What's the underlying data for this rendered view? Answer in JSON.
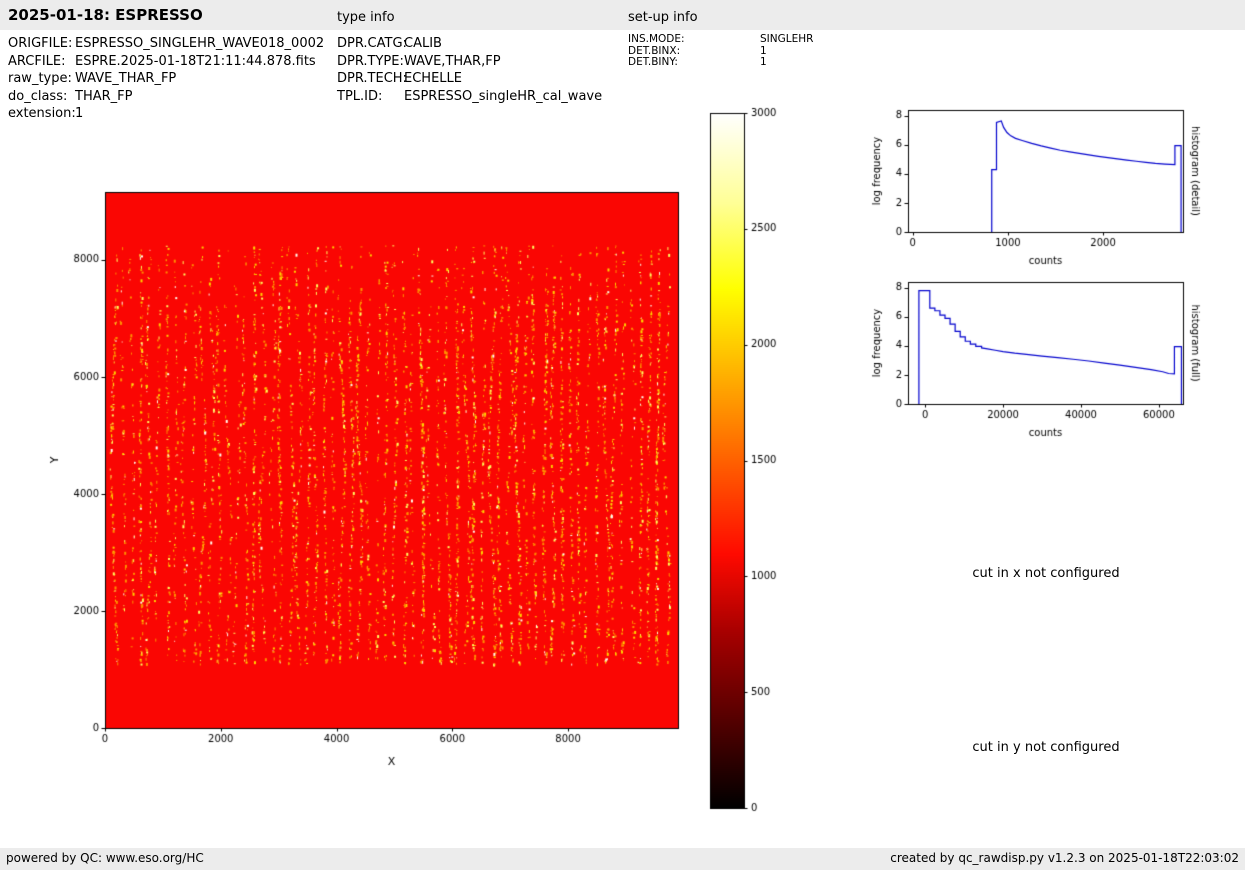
{
  "header": {
    "title": "2025-01-18: ESPRESSO",
    "type_info_label": "type info",
    "setup_info_label": "set-up info"
  },
  "metadata": {
    "file_info": [
      {
        "label": "ORIGFILE:",
        "value": "ESPRESSO_SINGLEHR_WAVE018_0002"
      },
      {
        "label": "ARCFILE:",
        "value": "ESPRE.2025-01-18T21:11:44.878.fits"
      },
      {
        "label": "raw_type:",
        "value": "WAVE_THAR_FP"
      },
      {
        "label": "do_class:",
        "value": "THAR_FP"
      },
      {
        "label": "extension:",
        "value": "1"
      }
    ],
    "type_info": [
      {
        "label": "DPR.CATG:",
        "value": "CALIB"
      },
      {
        "label": "DPR.TYPE:",
        "value": "WAVE,THAR,FP"
      },
      {
        "label": "DPR.TECH:",
        "value": "ECHELLE"
      },
      {
        "label": "TPL.ID:",
        "value": "ESPRESSO_singleHR_cal_wave"
      }
    ],
    "setup_info": [
      {
        "label": "INS.MODE:",
        "value": "SINGLEHR"
      },
      {
        "label": "DET.BINX:",
        "value": "1"
      },
      {
        "label": "DET.BINY:",
        "value": "1"
      }
    ]
  },
  "annotations": {
    "cut_x": "cut in x not configured",
    "cut_y": "cut in y not configured"
  },
  "footer": {
    "left": "powered by QC: www.eso.org/HC",
    "right": "created by qc_rawdisp.py v1.2.3 on 2025-01-18T22:03:02"
  },
  "chart_data": [
    {
      "id": "main-image",
      "type": "heatmap",
      "xlabel": "X",
      "ylabel": "Y",
      "xlim": [
        0,
        9900
      ],
      "ylim": [
        0,
        9160
      ],
      "xticks": [
        0,
        2000,
        4000,
        6000,
        8000
      ],
      "yticks": [
        0,
        2000,
        4000,
        6000,
        8000
      ],
      "colormap": "hot",
      "background_color": "#fa0603",
      "description": "Raw ESPRESSO WAVE,THAR,FP echelle frame: uniform ~1000 ADU red background with ~64 vertical echelle-order stripes of bright ThAr/FP emission-line speckles (yellow to white, up to ~3000 ADU) spanning y ~ 1100-8250",
      "speckle": {
        "columns": 64,
        "x_start": 150,
        "x_end": 9700,
        "y_min": 1100,
        "y_max": 8250,
        "dots_per_column": 110,
        "colors": [
          "#ff9000",
          "#ffd400",
          "#ffff60",
          "#fffff0"
        ]
      }
    },
    {
      "id": "colorbar",
      "type": "colorbar",
      "vmin": 0,
      "vmax": 3000,
      "ticks": [
        0,
        500,
        1000,
        1500,
        2000,
        2500,
        3000
      ],
      "stops": [
        [
          0,
          "#000000"
        ],
        [
          0.13,
          "#570000"
        ],
        [
          0.25,
          "#a50000"
        ],
        [
          0.365,
          "#ff0a00"
        ],
        [
          0.555,
          "#ff8500"
        ],
        [
          0.746,
          "#ffff00"
        ],
        [
          0.87,
          "#ffff96"
        ],
        [
          1,
          "#ffffff"
        ]
      ]
    },
    {
      "id": "hist-detail",
      "type": "line",
      "xlabel": "counts",
      "ylabel": "log frequency",
      "right_label": "histogram (detail)",
      "line_color": "#0000cd",
      "xlim": [
        -50,
        2840
      ],
      "ylim": [
        0,
        8.4
      ],
      "xticks": [
        0,
        1000,
        2000
      ],
      "yticks": [
        0,
        2,
        4,
        6,
        8
      ],
      "legend": "none",
      "grid": false,
      "points": [
        [
          830,
          0
        ],
        [
          830,
          4.3
        ],
        [
          880,
          4.3
        ],
        [
          880,
          7.55
        ],
        [
          930,
          7.65
        ],
        [
          955,
          7.2
        ],
        [
          990,
          6.85
        ],
        [
          1030,
          6.62
        ],
        [
          1080,
          6.45
        ],
        [
          1150,
          6.3
        ],
        [
          1250,
          6.1
        ],
        [
          1350,
          5.93
        ],
        [
          1450,
          5.78
        ],
        [
          1550,
          5.63
        ],
        [
          1650,
          5.52
        ],
        [
          1750,
          5.41
        ],
        [
          1850,
          5.31
        ],
        [
          1950,
          5.21
        ],
        [
          2050,
          5.12
        ],
        [
          2150,
          5.03
        ],
        [
          2250,
          4.95
        ],
        [
          2350,
          4.87
        ],
        [
          2450,
          4.8
        ],
        [
          2550,
          4.73
        ],
        [
          2650,
          4.68
        ],
        [
          2755,
          4.64
        ],
        [
          2755,
          5.95
        ],
        [
          2820,
          5.95
        ],
        [
          2820,
          0
        ]
      ]
    },
    {
      "id": "hist-full",
      "type": "line",
      "xlabel": "counts",
      "ylabel": "log frequency",
      "right_label": "histogram (full)",
      "line_color": "#0000cd",
      "xlim": [
        -4400,
        66200
      ],
      "ylim": [
        0,
        8.4
      ],
      "xticks": [
        0,
        20000,
        40000,
        60000
      ],
      "yticks": [
        0,
        2,
        4,
        6,
        8
      ],
      "legend": "none",
      "grid": false,
      "points": [
        [
          -1600,
          0
        ],
        [
          -1600,
          7.8
        ],
        [
          1200,
          7.8
        ],
        [
          1200,
          6.6
        ],
        [
          2500,
          6.6
        ],
        [
          2500,
          6.42
        ],
        [
          3800,
          6.42
        ],
        [
          3800,
          6.12
        ],
        [
          5100,
          6.12
        ],
        [
          5100,
          5.9
        ],
        [
          6400,
          5.9
        ],
        [
          6400,
          5.5
        ],
        [
          7700,
          5.5
        ],
        [
          7700,
          5.0
        ],
        [
          9000,
          5.0
        ],
        [
          9000,
          4.62
        ],
        [
          10300,
          4.62
        ],
        [
          10300,
          4.32
        ],
        [
          11600,
          4.32
        ],
        [
          11600,
          4.12
        ],
        [
          13000,
          4.12
        ],
        [
          13000,
          3.97
        ],
        [
          14500,
          3.97
        ],
        [
          14500,
          3.86
        ],
        [
          16000,
          3.8
        ],
        [
          18000,
          3.7
        ],
        [
          20000,
          3.6
        ],
        [
          23000,
          3.5
        ],
        [
          26000,
          3.42
        ],
        [
          30000,
          3.3
        ],
        [
          34000,
          3.19
        ],
        [
          38000,
          3.08
        ],
        [
          42000,
          2.96
        ],
        [
          46000,
          2.82
        ],
        [
          50000,
          2.68
        ],
        [
          54000,
          2.52
        ],
        [
          58000,
          2.37
        ],
        [
          61000,
          2.22
        ],
        [
          62500,
          2.1
        ],
        [
          64000,
          2.08
        ],
        [
          64000,
          3.95
        ],
        [
          65800,
          3.95
        ],
        [
          65800,
          0
        ]
      ]
    }
  ]
}
